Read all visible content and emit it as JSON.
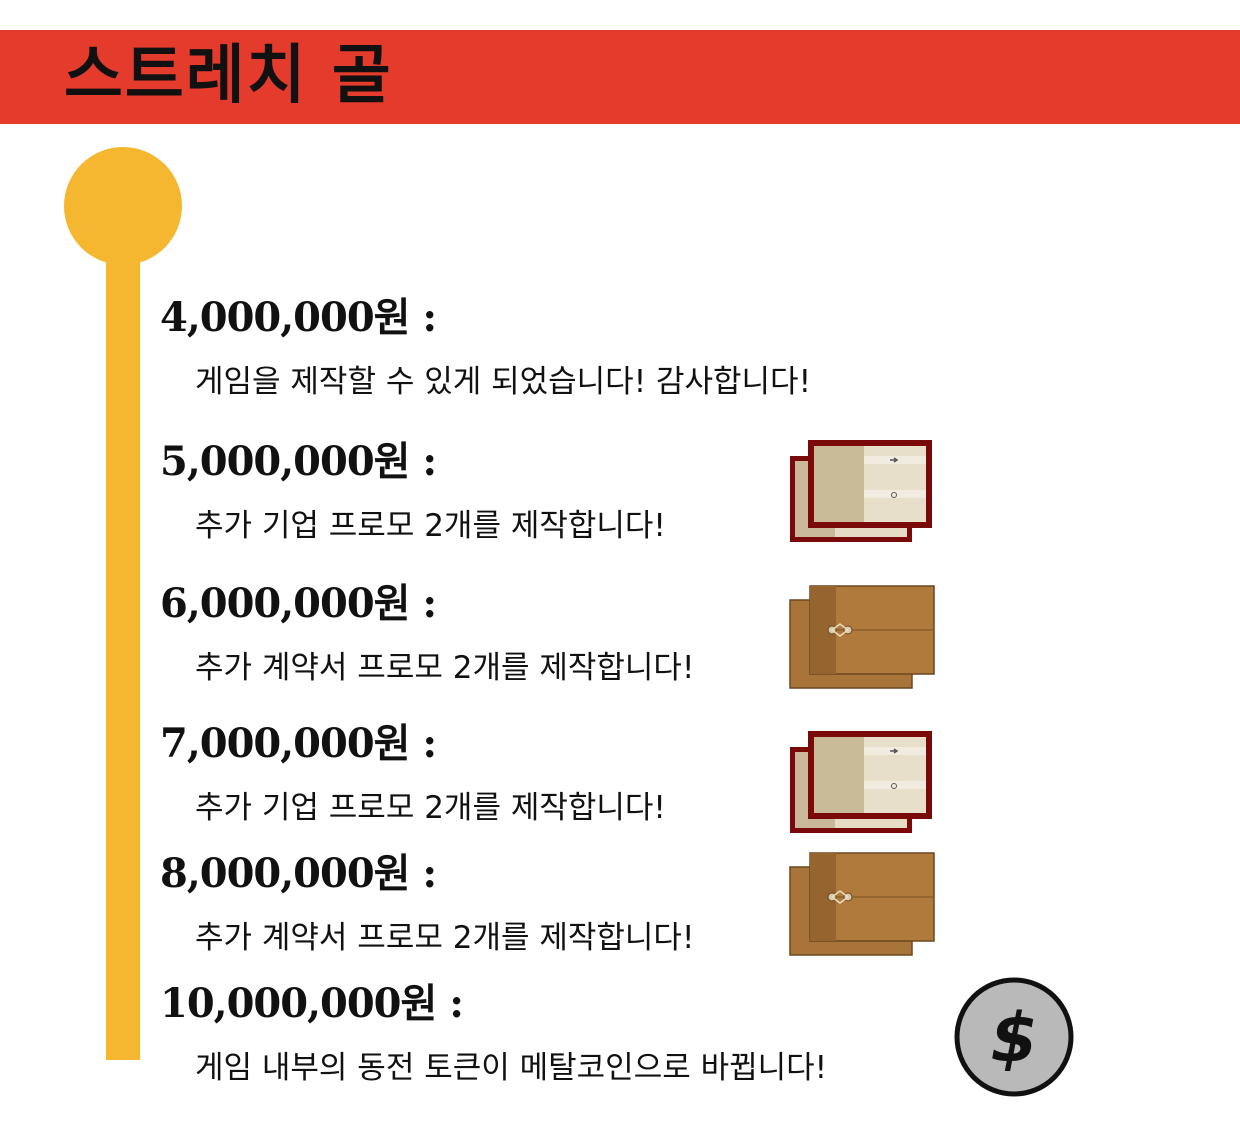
{
  "header": {
    "title": "스트레치 골"
  },
  "goals": [
    {
      "amount": "4,000,000원 :",
      "description": "게임을 제작할 수 있게 되었습니다! 감사합니다!",
      "icon": "none"
    },
    {
      "amount": "5,000,000원 :",
      "description": "추가 기업 프로모 2개를 제작합니다!",
      "icon": "corporation-promo-cards-icon"
    },
    {
      "amount": "6,000,000원 :",
      "description": "추가 계약서 프로모 2개를 제작합니다!",
      "icon": "contract-promo-envelopes-icon"
    },
    {
      "amount": "7,000,000원 :",
      "description": "추가 기업 프로모 2개를 제작합니다!",
      "icon": "corporation-promo-cards-icon"
    },
    {
      "amount": "8,000,000원 :",
      "description": "추가 계약서 프로모 2개를 제작합니다!",
      "icon": "contract-promo-envelopes-icon"
    },
    {
      "amount": "10,000,000원 :",
      "description": "게임 내부의 동전 토큰이 메탈코인으로 바뀝니다!",
      "icon": "metal-coin-icon"
    }
  ],
  "coin": {
    "symbol": "$"
  },
  "colors": {
    "banner": "#e43b2c",
    "timeline": "#f5b72f",
    "card_border": "#7a0a0a",
    "envelope": "#b07a3c",
    "coin": "#b9b9b9"
  }
}
